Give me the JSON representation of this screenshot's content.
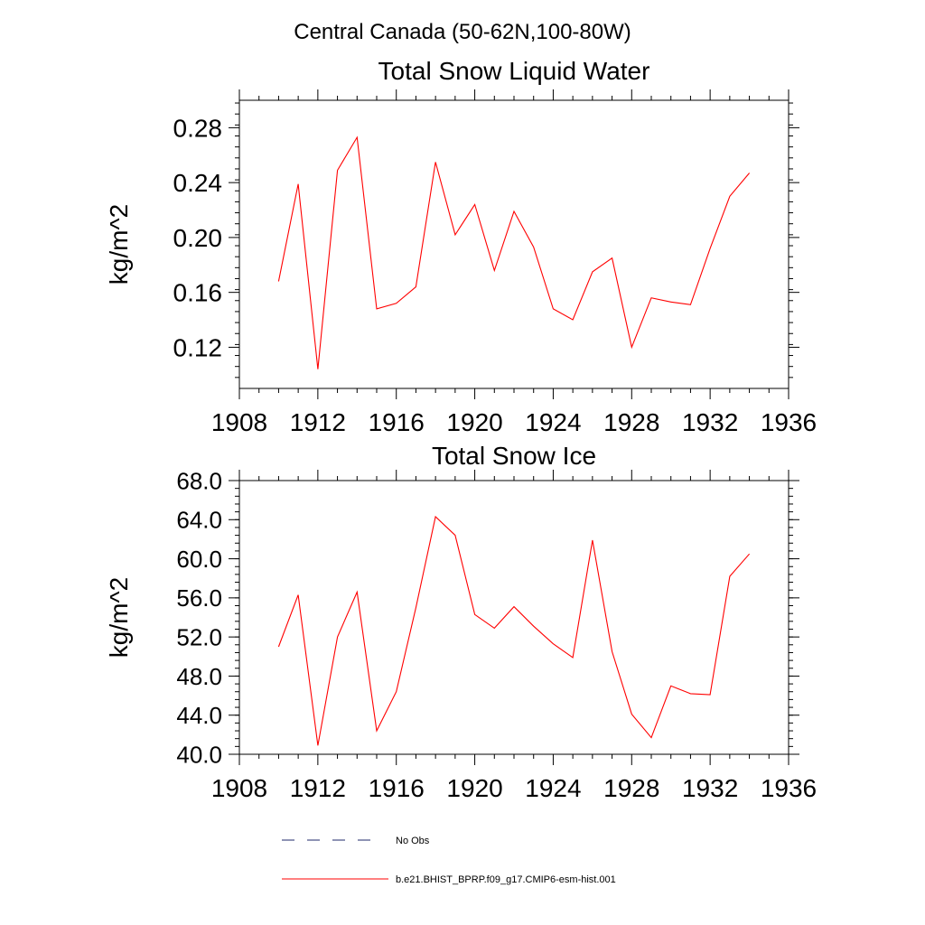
{
  "page_title": "Central Canada (50-62N,100-80W)",
  "colors": {
    "model_line": "#ff0000",
    "obs_line": "#1f2a6b",
    "axes": "#000000"
  },
  "legend": {
    "obs_label": "No Obs",
    "model_label": "b.e21.BHIST_BPRP.f09_g17.CMIP6-esm-hist.001"
  },
  "chart_data": [
    {
      "type": "line",
      "title": "Total Snow Liquid Water",
      "xlabel": "",
      "ylabel": "kg/m^2",
      "xlim": [
        1908,
        1936
      ],
      "ylim": [
        0.09,
        0.3
      ],
      "xticks": [
        1908,
        1912,
        1916,
        1920,
        1924,
        1928,
        1932,
        1936
      ],
      "xtick_labels": [
        "1908",
        "1912",
        "1916",
        "1920",
        "1924",
        "1928",
        "1932",
        "1936"
      ],
      "yticks": [
        0.12,
        0.16,
        0.2,
        0.24,
        0.28
      ],
      "ytick_labels": [
        "0.12",
        "0.16",
        "0.20",
        "0.24",
        "0.28"
      ],
      "grid": false,
      "x": [
        1910,
        1911,
        1912,
        1913,
        1914,
        1915,
        1916,
        1917,
        1918,
        1919,
        1920,
        1921,
        1922,
        1923,
        1924,
        1925,
        1926,
        1927,
        1928,
        1929,
        1930,
        1931,
        1932,
        1933,
        1934
      ],
      "series": [
        {
          "name": "b.e21.BHIST_BPRP.f09_g17.CMIP6-esm-hist.001",
          "values": [
            0.168,
            0.239,
            0.104,
            0.249,
            0.273,
            0.148,
            0.152,
            0.164,
            0.255,
            0.202,
            0.224,
            0.176,
            0.219,
            0.193,
            0.148,
            0.14,
            0.175,
            0.185,
            0.12,
            0.156,
            0.153,
            0.151,
            0.192,
            0.23,
            0.247
          ]
        }
      ]
    },
    {
      "type": "line",
      "title": "Total Snow Ice",
      "xlabel": "",
      "ylabel": "kg/m^2",
      "xlim": [
        1908,
        1936
      ],
      "ylim": [
        40.0,
        68.0
      ],
      "xticks": [
        1908,
        1912,
        1916,
        1920,
        1924,
        1928,
        1932,
        1936
      ],
      "xtick_labels": [
        "1908",
        "1912",
        "1916",
        "1920",
        "1924",
        "1928",
        "1932",
        "1936"
      ],
      "yticks": [
        40,
        44,
        48,
        52,
        56,
        60,
        64,
        68
      ],
      "ytick_labels": [
        "40.0",
        "44.0",
        "48.0",
        "52.0",
        "56.0",
        "60.0",
        "64.0",
        "68.0"
      ],
      "grid": false,
      "x": [
        1910,
        1911,
        1912,
        1913,
        1914,
        1915,
        1916,
        1917,
        1918,
        1919,
        1920,
        1921,
        1922,
        1923,
        1924,
        1925,
        1926,
        1927,
        1928,
        1929,
        1930,
        1931,
        1932,
        1933,
        1934
      ],
      "series": [
        {
          "name": "b.e21.BHIST_BPRP.f09_g17.CMIP6-esm-hist.001",
          "values": [
            51.0,
            56.3,
            40.9,
            52.0,
            56.6,
            42.4,
            46.4,
            55.0,
            64.3,
            62.4,
            54.3,
            52.9,
            55.1,
            53.1,
            51.3,
            49.9,
            61.9,
            50.5,
            44.1,
            41.7,
            47.0,
            46.2,
            46.1,
            58.2,
            60.5
          ]
        }
      ]
    }
  ]
}
